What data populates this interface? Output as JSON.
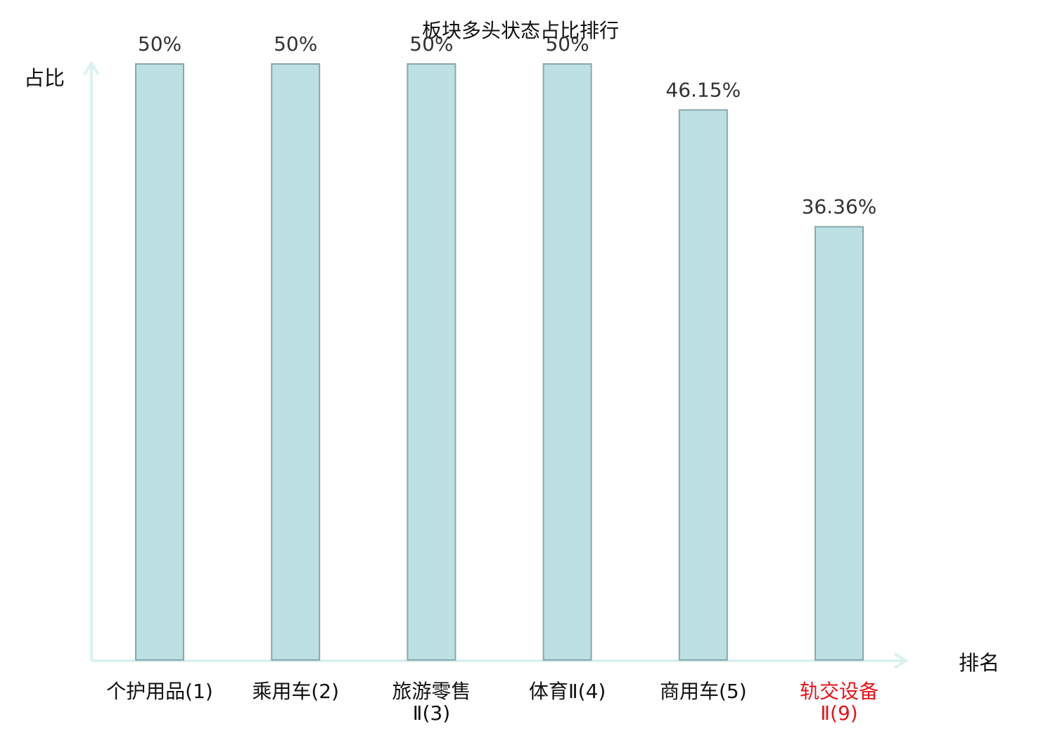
{
  "chart_data": {
    "type": "bar",
    "title": "板块多头状态占比排行",
    "ylabel": "占比",
    "xlabel": "排名",
    "ylim": [
      0,
      50
    ],
    "grid": false,
    "legend": "none",
    "categories": [
      "个护用品(1)",
      "乘用车(2)",
      "旅游零售Ⅱ(3)",
      "体育Ⅱ(4)",
      "商用车(5)",
      "轨交设备Ⅱ(9)"
    ],
    "category_lines": [
      [
        "个护用品(1)"
      ],
      [
        "乘用车(2)"
      ],
      [
        "旅游零售",
        "Ⅱ(3)"
      ],
      [
        "体育Ⅱ(4)"
      ],
      [
        "商用车(5)"
      ],
      [
        "轨交设备",
        "Ⅱ(9)"
      ]
    ],
    "values": [
      50,
      50,
      50,
      50,
      46.15,
      36.36
    ],
    "data_labels": [
      "50%",
      "50%",
      "50%",
      "50%",
      "46.15%",
      "36.36%"
    ],
    "highlight_index": 5,
    "colors": {
      "bar_fill": "#bce0e3",
      "bar_stroke": "#89a7ab",
      "axis": "#dcf1ef",
      "label": "#111111",
      "highlight": "#e8141b",
      "data_label": "#333333"
    }
  }
}
